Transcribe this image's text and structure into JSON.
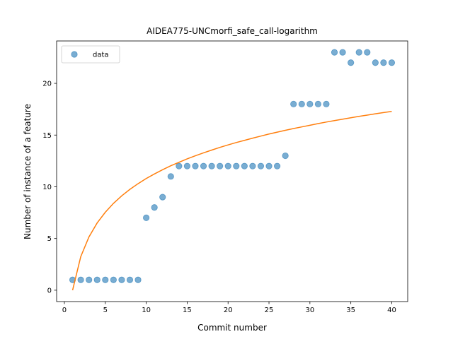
{
  "chart_data": {
    "type": "scatter",
    "title": "AIDEA775-UNCmorfi_safe_call-logarithm",
    "xlabel": "Commit number",
    "ylabel": "Number of instance of a feature",
    "xlim": [
      -0.95,
      41.95
    ],
    "ylim": [
      -1.1,
      24.1
    ],
    "xticks": [
      0,
      5,
      10,
      15,
      20,
      25,
      30,
      35,
      40
    ],
    "yticks": [
      0,
      5,
      10,
      15,
      20
    ],
    "grid": false,
    "legend_position": "upper-left",
    "series": [
      {
        "name": "data",
        "kind": "scatter",
        "color": "#1f77b4",
        "x": [
          1,
          2,
          3,
          4,
          5,
          6,
          7,
          8,
          9,
          10,
          11,
          12,
          13,
          14,
          15,
          16,
          17,
          18,
          19,
          20,
          21,
          22,
          23,
          24,
          25,
          26,
          27,
          28,
          29,
          30,
          31,
          32,
          33,
          34,
          35,
          36,
          37,
          38,
          39,
          40
        ],
        "y": [
          1,
          1,
          1,
          1,
          1,
          1,
          1,
          1,
          1,
          7,
          8,
          9,
          11,
          12,
          12,
          12,
          12,
          12,
          12,
          12,
          12,
          12,
          12,
          12,
          12,
          12,
          13,
          18,
          18,
          18,
          18,
          18,
          23,
          23,
          22,
          23,
          23,
          22,
          22,
          22
        ]
      },
      {
        "kind": "line",
        "color": "#ff7f0e",
        "x": [
          1,
          2,
          3,
          4,
          5,
          6,
          7,
          8,
          9,
          10,
          11,
          12,
          13,
          14,
          15,
          16,
          17,
          18,
          19,
          20,
          21,
          22,
          23,
          24,
          25,
          26,
          27,
          28,
          29,
          30,
          31,
          32,
          33,
          34,
          35,
          36,
          37,
          38,
          39,
          40
        ],
        "y": [
          0.0,
          3.25,
          5.15,
          6.5,
          7.54,
          8.4,
          9.12,
          9.75,
          10.3,
          10.8,
          11.24,
          11.65,
          12.03,
          12.37,
          12.7,
          13.0,
          13.28,
          13.55,
          13.81,
          14.05,
          14.28,
          14.49,
          14.7,
          14.9,
          15.1,
          15.28,
          15.46,
          15.63,
          15.79,
          15.95,
          16.11,
          16.26,
          16.4,
          16.54,
          16.67,
          16.81,
          16.93,
          17.06,
          17.18,
          17.29
        ]
      }
    ]
  }
}
